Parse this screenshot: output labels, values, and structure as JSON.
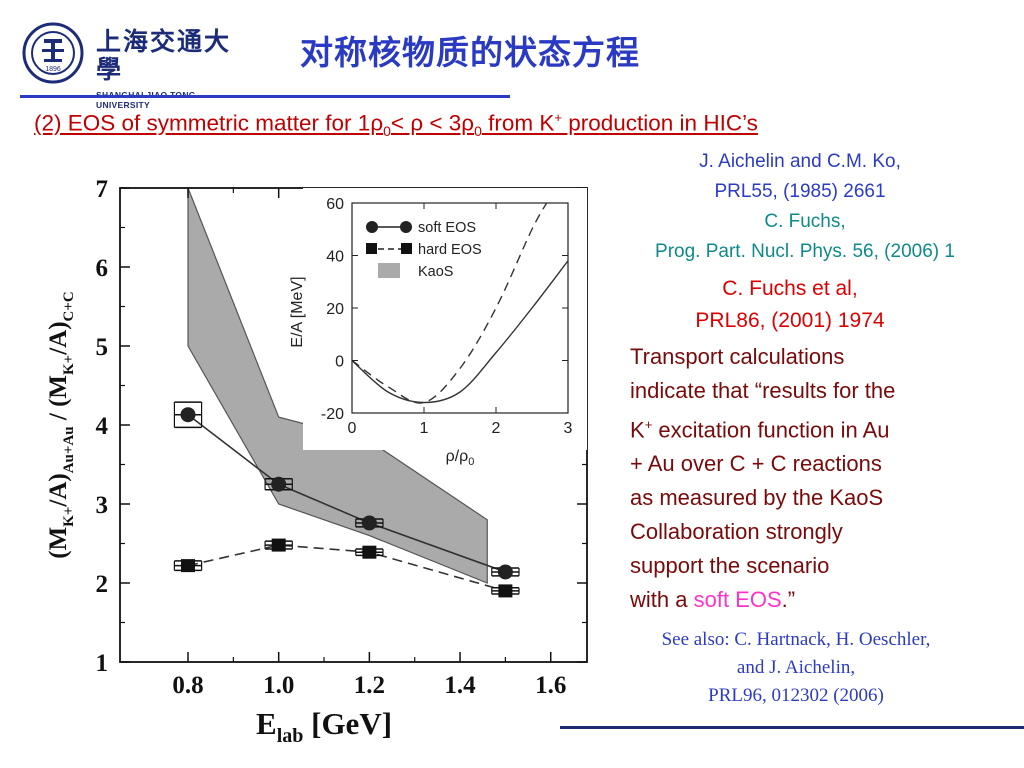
{
  "header": {
    "logo_cn": "上海交通大學",
    "logo_en": "SHANGHAI JIAO TONG UNIVERSITY",
    "seal_text": "1896",
    "title": "对称核物质的状态方程"
  },
  "subtitle": {
    "p1": "(2) EOS of symmetric matter for 1ρ",
    "sub1": "0",
    "p2": "< ρ < 3ρ",
    "sub2": "0",
    "p3": " from K",
    "sup": "+",
    "p4": " production in HIC’s"
  },
  "references": {
    "ref1_line1": "J. Aichelin and C.M. Ko,",
    "ref1_line2": "PRL55, (1985) 2661",
    "ref2_line1": "C. Fuchs,",
    "ref2_line2": "Prog. Part. Nucl. Phys. 56, (2006) 1",
    "ref3_line1": "C. Fuchs et al,",
    "ref3_line2": "PRL86, (2001) 1974"
  },
  "body": {
    "l1": "Transport calculations",
    "l2": "indicate that “results for the",
    "l3a": "K",
    "l3sup": "+",
    "l3b": " excitation function in Au",
    "l4": "+ Au over C + C reactions",
    "l5": "as measured by the KaoS",
    "l6": "Collaboration strongly",
    "l7": "support the scenario",
    "l8a": "with a ",
    "l8b": "soft EOS",
    "l8c": ".”"
  },
  "see_also": {
    "l1": "See also: C. Hartnack, H. Oeschler,",
    "l2": "and J. Aichelin,",
    "l3": "PRL96, 012302 (2006)"
  },
  "colors": {
    "title_blue": "#2a3ac2",
    "subtitle_red": "#c00000",
    "body_dark_red": "#7a0a0a",
    "soft_eos_pink": "#ff33cc",
    "ref_teal": "#0f8a8a",
    "band_gray": "#aaaaaa"
  },
  "chart_data": [
    {
      "type": "line",
      "xlabel_main": "E",
      "xlabel_sub": "lab",
      "xlabel_unit": "[GeV]",
      "ylabel": {
        "t1": "(M",
        "s1": "K+",
        "t2": "/A)",
        "s2": "Au+Au",
        "t3": " / (M",
        "s3": "K+",
        "t4": "/A)",
        "s4": "C+C"
      },
      "xlim": [
        0.65,
        1.68
      ],
      "ylim": [
        1,
        7
      ],
      "xticks": [
        0.8,
        1.0,
        1.2,
        1.4,
        1.6
      ],
      "xtick_labels": [
        "0.8",
        "1.0",
        "1.2",
        "1.4",
        "1.6"
      ],
      "yticks": [
        1,
        2,
        3,
        4,
        5,
        6,
        7
      ],
      "ytick_labels": [
        "1",
        "2",
        "3",
        "4",
        "5",
        "6",
        "7"
      ],
      "series": [
        {
          "name": "soft EOS",
          "marker": "circle",
          "line": "solid",
          "x": [
            0.8,
            1.0,
            1.2,
            1.5
          ],
          "y": [
            4.13,
            3.25,
            2.76,
            2.14
          ],
          "xerr": [
            0.03,
            0.03,
            0.03,
            0.03
          ],
          "yerr": [
            0.16,
            0.07,
            0.05,
            0.05
          ]
        },
        {
          "name": "hard EOS",
          "marker": "square",
          "line": "dashed",
          "x": [
            0.8,
            1.0,
            1.2,
            1.5
          ],
          "y": [
            2.22,
            2.48,
            2.39,
            1.9
          ],
          "xerr": [
            0.03,
            0.03,
            0.03,
            0.03
          ],
          "yerr": [
            0.06,
            0.05,
            0.04,
            0.04
          ]
        }
      ],
      "band": {
        "name": "KaoS",
        "x": [
          0.8,
          1.0,
          1.2,
          1.46
        ],
        "upper": [
          7.0,
          4.1,
          3.8,
          2.8
        ],
        "lower": [
          5.0,
          3.0,
          2.6,
          2.0
        ]
      }
    },
    {
      "type": "line",
      "xlabel": "ρ/ρ",
      "xlabel_sub": "0",
      "ylabel": "E/A [MeV]",
      "xlim": [
        0,
        3
      ],
      "ylim": [
        -20,
        60
      ],
      "xticks": [
        0,
        1,
        2,
        3
      ],
      "xtick_labels": [
        "0",
        "1",
        "2",
        "3"
      ],
      "yticks": [
        -20,
        0,
        20,
        40,
        60
      ],
      "ytick_labels": [
        "-20",
        "0",
        "20",
        "40",
        "60"
      ],
      "legend": [
        "soft EOS",
        "hard EOS",
        "KaoS"
      ],
      "legend_position": "top-left",
      "series": [
        {
          "name": "soft EOS",
          "line": "solid",
          "x": [
            0,
            0.5,
            1.0,
            1.5,
            2.0,
            2.5,
            3.0
          ],
          "y": [
            0,
            -12,
            -16,
            -12,
            3,
            20,
            38
          ]
        },
        {
          "name": "hard EOS",
          "line": "dashed",
          "x": [
            0,
            0.5,
            1.0,
            1.5,
            2.0,
            2.5,
            2.75
          ],
          "y": [
            0,
            -10,
            -16,
            -3,
            20,
            50,
            62
          ]
        }
      ]
    }
  ]
}
